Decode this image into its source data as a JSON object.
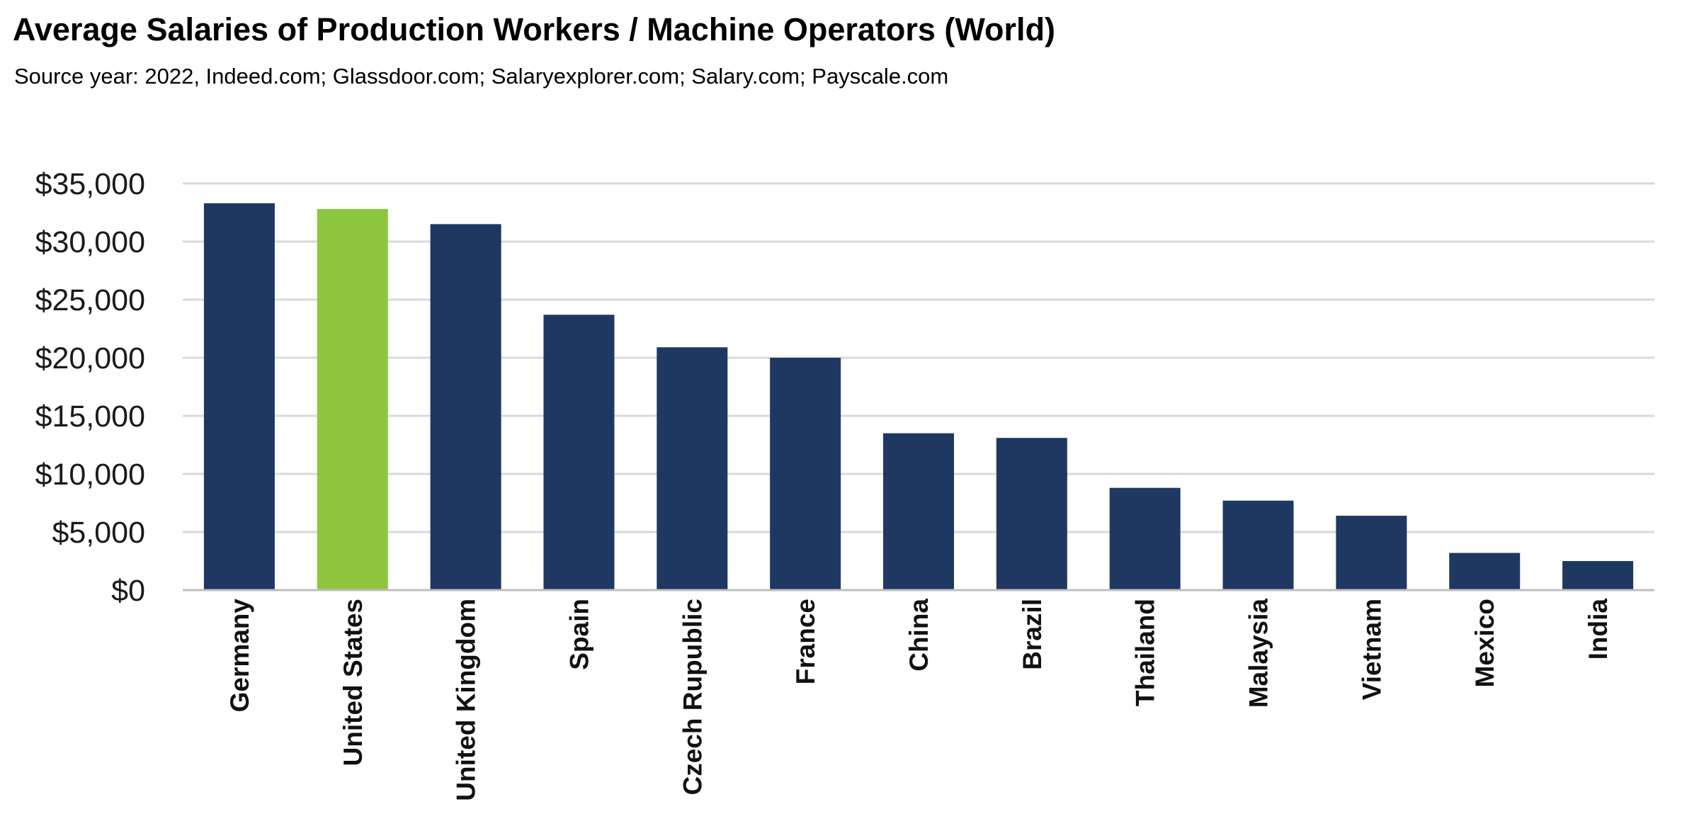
{
  "header": {
    "title": "Average Salaries of Production Workers / Machine Operators (World)",
    "subtitle": "Source year: 2022, Indeed.com; Glassdoor.com; Salaryexplorer.com; Salary.com; Payscale.com"
  },
  "chart_data": {
    "type": "bar",
    "title": "Average Salaries of Production Workers / Machine Operators (World)",
    "subtitle": "Source year: 2022, Indeed.com; Glassdoor.com; Salaryexplorer.com; Salary.com; Payscale.com",
    "categories": [
      "Germany",
      "United States",
      "United Kingdom",
      "Spain",
      "Czech Rupublic",
      "France",
      "China",
      "Brazil",
      "Thailand",
      "Malaysia",
      "Vietnam",
      "Mexico",
      "India"
    ],
    "values": [
      33300,
      32800,
      31500,
      23700,
      20900,
      20000,
      13500,
      13100,
      8800,
      7700,
      6400,
      3200,
      2500
    ],
    "ylim": [
      0,
      35000
    ],
    "yticks": [
      "$0",
      "$5,000",
      "$10,000",
      "$15,000",
      "$20,000",
      "$25,000",
      "$30,000",
      "$35,000"
    ],
    "ytick_values": [
      0,
      5000,
      10000,
      15000,
      20000,
      25000,
      30000,
      35000
    ],
    "grid": true,
    "legend": "none",
    "xlabel": "",
    "ylabel": "",
    "colors": {
      "bar": "#1f3861",
      "highlight": "#8dc63f",
      "grid": "#d9d9d9",
      "axis": "#bfbfbf"
    },
    "highlight_category": "United States"
  }
}
